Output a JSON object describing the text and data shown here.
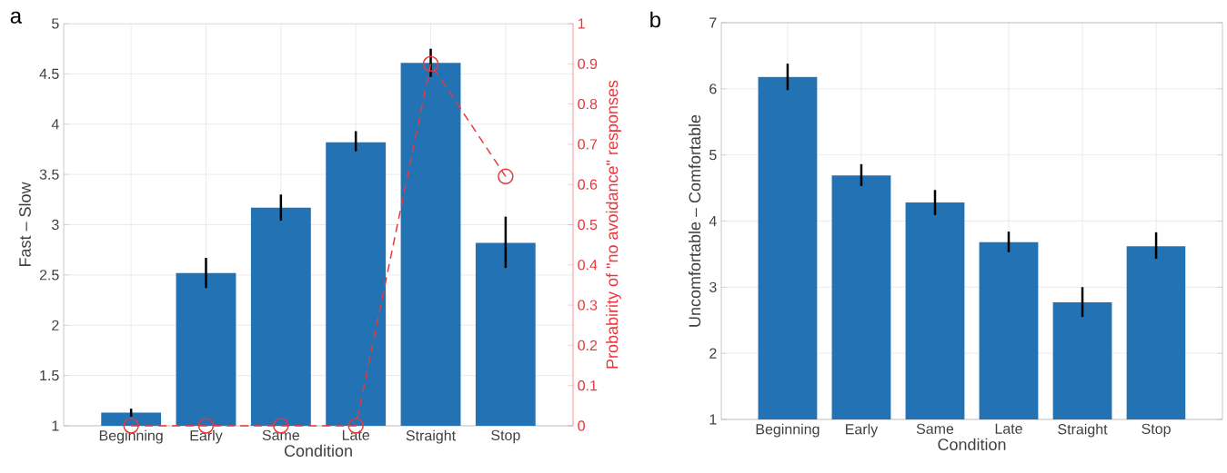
{
  "chart_data": [
    {
      "type": "bar",
      "title": "a",
      "xlabel": "Condition",
      "ylabel": "Fast – Slow",
      "y2label": "Probabirity of \"no avoidance\" responses",
      "categories": [
        "Beginning",
        "Early",
        "Same",
        "Late",
        "Straight",
        "Stop"
      ],
      "series": [
        {
          "type": "bar",
          "color": "#2272b4",
          "values": [
            1.13,
            2.52,
            3.17,
            3.82,
            4.61,
            2.82
          ],
          "errors": [
            [
              1.09,
              1.17
            ],
            [
              2.37,
              2.67
            ],
            [
              3.04,
              3.3
            ],
            [
              3.73,
              3.93
            ],
            [
              4.47,
              4.75
            ],
            [
              2.57,
              3.08
            ]
          ]
        },
        {
          "type": "line",
          "axis": "y2",
          "color": "#e8383d",
          "marker": "circle",
          "line_style": "dashed",
          "values": [
            0,
            0,
            0,
            0,
            0.9,
            0.62
          ]
        }
      ],
      "ylim": [
        1,
        5
      ],
      "yticks": [
        1,
        1.5,
        2,
        2.5,
        3,
        3.5,
        4,
        4.5,
        5
      ],
      "y2lim": [
        0,
        1
      ],
      "y2ticks": [
        0,
        0.1,
        0.2,
        0.3,
        0.4,
        0.5,
        0.6,
        0.7,
        0.8,
        0.9,
        1
      ],
      "grid": true
    },
    {
      "type": "bar",
      "title": "b",
      "xlabel": "Condition",
      "ylabel": "Uncomfortable – Comfortable",
      "categories": [
        "Beginning",
        "Early",
        "Same",
        "Late",
        "Straight",
        "Stop"
      ],
      "color": "#2272b4",
      "values": [
        6.18,
        4.69,
        4.28,
        3.68,
        2.77,
        3.62
      ],
      "errors": [
        [
          5.98,
          6.38
        ],
        [
          4.53,
          4.86
        ],
        [
          4.09,
          4.47
        ],
        [
          3.53,
          3.84
        ],
        [
          2.55,
          3.0
        ],
        [
          3.43,
          3.83
        ]
      ],
      "ylim": [
        1,
        7
      ],
      "yticks": [
        1,
        2,
        3,
        4,
        5,
        6,
        7
      ],
      "grid": true
    }
  ]
}
